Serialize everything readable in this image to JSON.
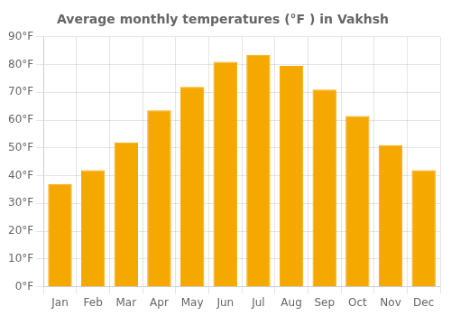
{
  "chart_data": {
    "type": "bar",
    "title": "Average monthly temperatures (°F ) in Vakhsh",
    "categories": [
      "Jan",
      "Feb",
      "Mar",
      "Apr",
      "May",
      "Jun",
      "Jul",
      "Aug",
      "Sep",
      "Oct",
      "Nov",
      "Dec"
    ],
    "values": [
      37,
      42,
      52,
      63.5,
      72,
      81,
      83.5,
      79.5,
      71,
      61.5,
      51,
      42
    ],
    "color": "#F5A800",
    "ylim": [
      0,
      90
    ],
    "yticks": [
      {
        "value": 0,
        "label": "0°F"
      },
      {
        "value": 10,
        "label": "10°F"
      },
      {
        "value": 20,
        "label": "20°F"
      },
      {
        "value": 30,
        "label": "30°F"
      },
      {
        "value": 40,
        "label": "40°F"
      },
      {
        "value": 50,
        "label": "50°F"
      },
      {
        "value": 60,
        "label": "60°F"
      },
      {
        "value": 70,
        "label": "70°F"
      },
      {
        "value": 80,
        "label": "80°F"
      },
      {
        "value": 90,
        "label": "90°F"
      }
    ],
    "grid": true
  }
}
